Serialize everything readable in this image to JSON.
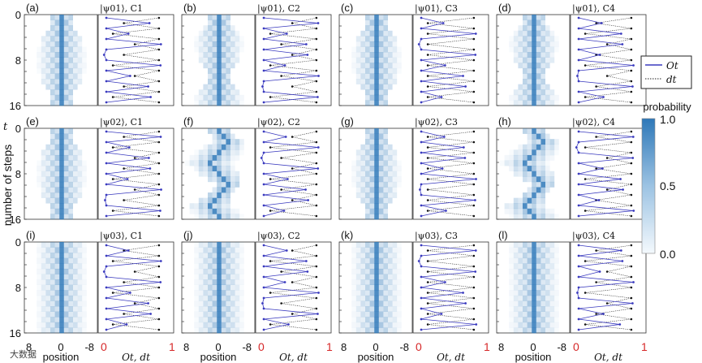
{
  "figure": {
    "y_axis_label": "number of steps",
    "y_axis_symbol": "t",
    "y_ticks": [
      "0",
      "8",
      "16"
    ],
    "x_label_left": "position",
    "x_label_right": "Ot, dt",
    "x_ticks_left": [
      "8",
      "0",
      "-8"
    ],
    "x_ticks_right": [
      "0",
      "1"
    ],
    "accent_red": "#d62728",
    "heat_color": "#2e78b8",
    "line_O_color": "#3b3bbf",
    "line_d_color": "#222222"
  },
  "panels": [
    {
      "label": "(a)",
      "state": "|ψ01⟩, C1"
    },
    {
      "label": "(b)",
      "state": "|ψ01⟩, C2"
    },
    {
      "label": "(c)",
      "state": "|ψ01⟩, C3"
    },
    {
      "label": "(d)",
      "state": "|ψ01⟩, C4"
    },
    {
      "label": "(e)",
      "state": "|ψ02⟩, C1"
    },
    {
      "label": "(f)",
      "state": "|ψ02⟩, C2"
    },
    {
      "label": "(g)",
      "state": "|ψ02⟩, C3"
    },
    {
      "label": "(h)",
      "state": "|ψ02⟩, C4"
    },
    {
      "label": "(i)",
      "state": "|ψ03⟩, C1"
    },
    {
      "label": "(j)",
      "state": "|ψ03⟩, C2"
    },
    {
      "label": "(k)",
      "state": "|ψ03⟩, C3"
    },
    {
      "label": "(l)",
      "state": "|ψ03⟩, C4"
    }
  ],
  "legend": {
    "items": [
      {
        "name": "Ot",
        "style": "solid"
      },
      {
        "name": "dt",
        "style": "dotted"
      }
    ]
  },
  "colorbar": {
    "title": "probability",
    "ticks": [
      "1.0",
      "0.5",
      "0.0"
    ]
  },
  "watermark": "大数据"
}
